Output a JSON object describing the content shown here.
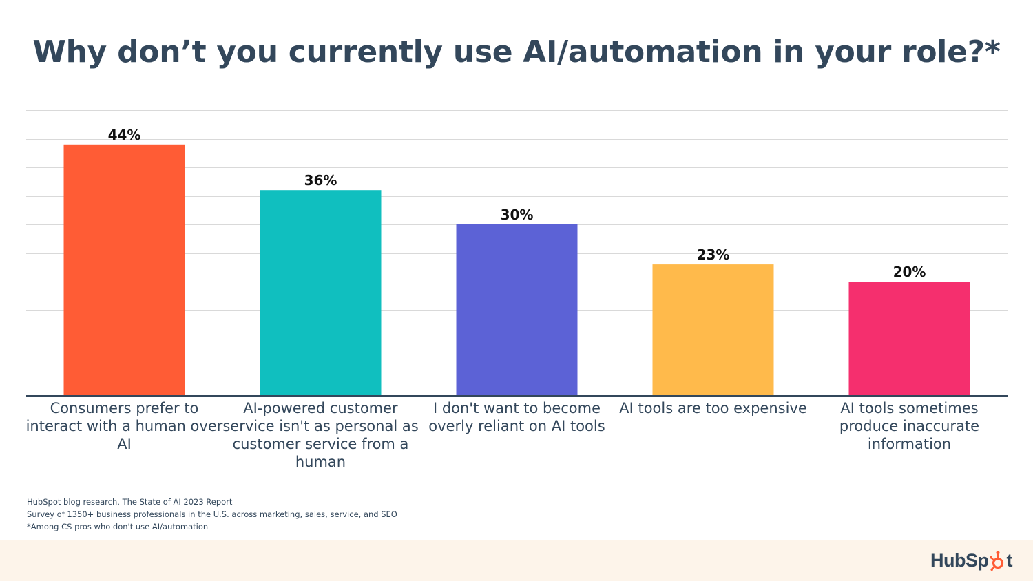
{
  "chart_data": {
    "type": "bar",
    "title": "Why don’t you currently use AI/automation in your role?*",
    "categories": [
      "Consumers prefer to interact with a human over AI",
      "AI-powered customer service isn't as personal as customer service from a human",
      "I don't want to become overly reliant on AI tools",
      "AI tools are too expensive",
      "AI tools sometimes produce inaccurate information"
    ],
    "values": [
      44,
      36,
      30,
      23,
      20
    ],
    "data_labels": [
      "44%",
      "36%",
      "30%",
      "23%",
      "20%"
    ],
    "colors": [
      "#ff5c35",
      "#10bfbf",
      "#5c62d6",
      "#ffba4b",
      "#f52f6e"
    ],
    "ylim": [
      0,
      50
    ],
    "grid": true,
    "xlabel": "",
    "ylabel": ""
  },
  "notes": [
    "HubSpot blog research, The State of AI 2023 Report",
    "Survey of 1350+ business professionals in the U.S. across marketing, sales, service, and SEO",
    "*Among CS pros who don't use AI/automation"
  ],
  "logo": {
    "text_left": "HubSp",
    "text_right": "t"
  },
  "colors": {
    "text": "#33475b",
    "footer_bg": "#fdf4ea",
    "grid": "#d9d9d9"
  }
}
